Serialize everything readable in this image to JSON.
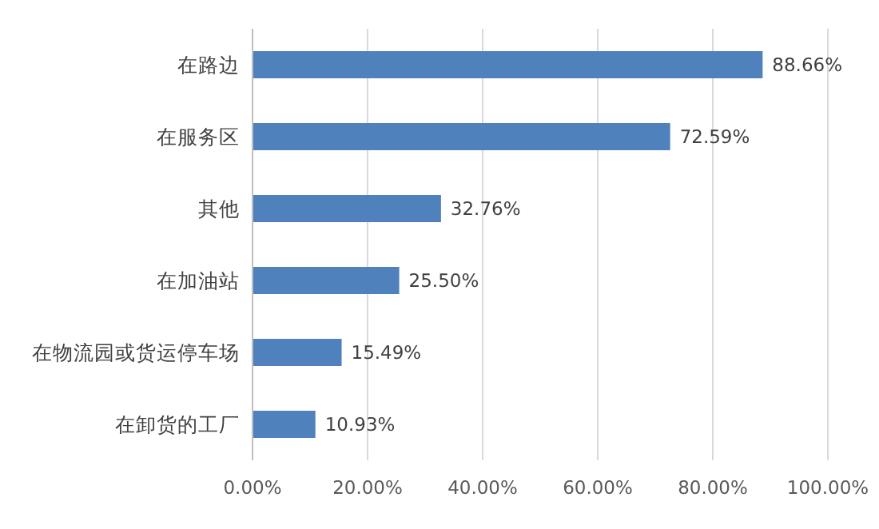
{
  "chart_data": {
    "type": "bar",
    "orientation": "horizontal",
    "categories": [
      "在路边",
      "在服务区",
      "其他",
      "在加油站",
      "在物流园或货运停车场",
      "在卸货的工厂"
    ],
    "values": [
      88.66,
      72.59,
      32.76,
      25.5,
      15.49,
      10.93
    ],
    "value_labels": [
      "88.66%",
      "72.59%",
      "32.76%",
      "25.50%",
      "15.49%",
      "10.93%"
    ],
    "color": "#4f81bd",
    "xlim": [
      0,
      100
    ],
    "xticks": [
      {
        "value": 0,
        "label": "0.00%"
      },
      {
        "value": 20,
        "label": "20.00%"
      },
      {
        "value": 40,
        "label": "40.00%"
      },
      {
        "value": 60,
        "label": "60.00%"
      },
      {
        "value": 80,
        "label": "80.00%"
      },
      {
        "value": 100,
        "label": "100.00%"
      }
    ],
    "grid": "x"
  }
}
